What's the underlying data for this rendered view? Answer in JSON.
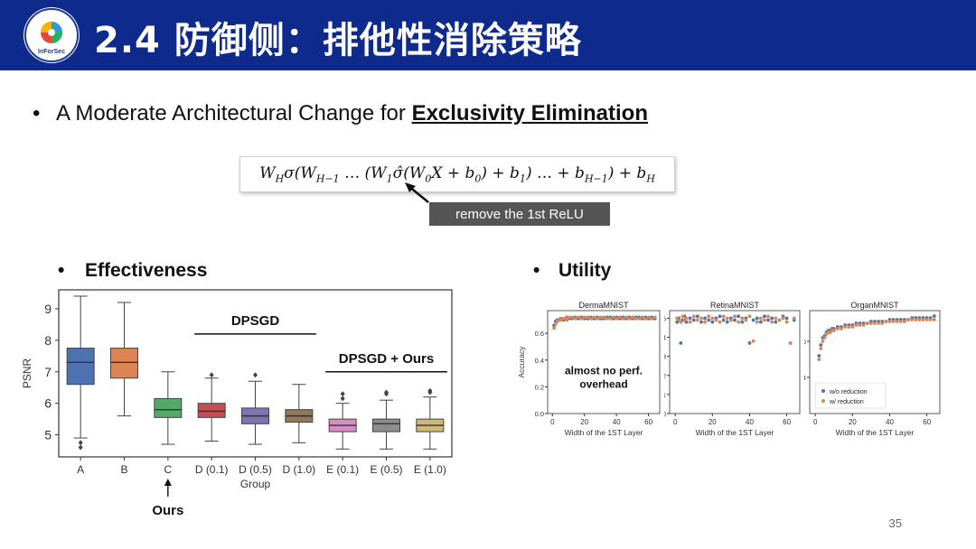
{
  "slide": {
    "title": "2.4 防御侧：排他性消除策略",
    "logo_text": "InForSec",
    "bullet_prefix": "A Moderate Architectural Change for ",
    "bullet_emphasis": "Exclusivity Elimination",
    "formula": "W_H σ(W_{H−1} … (W_1 σ̂(W_0 X + b_0) + b_1) … + b_{H−1}) + b_H",
    "formula_note": "remove the 1st ReLU",
    "effectiveness_heading": "Effectiveness",
    "utility_heading": "Utility",
    "page_number": "35",
    "colors": {
      "header_bg": "#0e2a8c",
      "note_bg": "#555555"
    }
  },
  "chart_data": [
    {
      "type": "box",
      "ylabel": "PSNR",
      "xlabel": "Group",
      "ylim": [
        4.3,
        9.6
      ],
      "yticks": [
        5,
        6,
        7,
        8,
        9
      ],
      "categories": [
        "A",
        "B",
        "C",
        "D (0.1)",
        "D (0.5)",
        "D (1.0)",
        "E (0.1)",
        "E (0.5)",
        "E (1.0)"
      ],
      "colors": [
        "#4c72b0",
        "#dd8452",
        "#55a868",
        "#c44e52",
        "#8172b3",
        "#937860",
        "#da8bc3",
        "#8c8c8c",
        "#ccb974"
      ],
      "boxes": [
        {
          "whislo": 4.9,
          "q1": 6.6,
          "med": 7.3,
          "q3": 7.75,
          "whishi": 9.4,
          "fliers": [
            4.75,
            4.6
          ]
        },
        {
          "whislo": 5.6,
          "q1": 6.8,
          "med": 7.3,
          "q3": 7.75,
          "whishi": 9.2,
          "fliers": []
        },
        {
          "whislo": 4.7,
          "q1": 5.55,
          "med": 5.8,
          "q3": 6.15,
          "whishi": 7.0,
          "fliers": []
        },
        {
          "whislo": 4.8,
          "q1": 5.55,
          "med": 5.75,
          "q3": 6.0,
          "whishi": 6.8,
          "fliers": [
            6.9
          ]
        },
        {
          "whislo": 4.7,
          "q1": 5.35,
          "med": 5.6,
          "q3": 5.85,
          "whishi": 6.7,
          "fliers": [
            6.9
          ]
        },
        {
          "whislo": 4.75,
          "q1": 5.4,
          "med": 5.6,
          "q3": 5.8,
          "whishi": 6.6,
          "fliers": []
        },
        {
          "whislo": 4.55,
          "q1": 5.1,
          "med": 5.3,
          "q3": 5.5,
          "whishi": 6.0,
          "fliers": [
            6.15,
            6.3
          ]
        },
        {
          "whislo": 4.55,
          "q1": 5.1,
          "med": 5.35,
          "q3": 5.5,
          "whishi": 6.1,
          "fliers": [
            6.3,
            6.35
          ]
        },
        {
          "whislo": 4.55,
          "q1": 5.1,
          "med": 5.3,
          "q3": 5.5,
          "whishi": 6.2,
          "fliers": [
            6.35,
            6.4
          ]
        }
      ],
      "annotations": [
        {
          "text": "DPSGD",
          "span": [
            3,
            5
          ],
          "y": 8.2
        },
        {
          "text": "DPSGD + Ours",
          "span": [
            6,
            8
          ],
          "y": 7.0
        },
        {
          "text": "Ours",
          "category": 2
        }
      ]
    },
    {
      "type": "scatter",
      "title": "DermaMNIST",
      "ylabel": "Accuracy",
      "xlabel": "Width of the 1ST Layer",
      "xlim": [
        -3,
        67
      ],
      "ylim": [
        0.0,
        0.77
      ],
      "xticks": [
        0,
        20,
        40,
        60
      ],
      "yticks": [
        0.0,
        0.2,
        0.4,
        0.6
      ],
      "annotation": "almost no perf. overhead",
      "series": [
        {
          "name": "w/o reduction",
          "color": "#4c72b0",
          "x": [
            1,
            2,
            3,
            4,
            5,
            6,
            7,
            8,
            9,
            10,
            12,
            14,
            16,
            18,
            20,
            22,
            24,
            26,
            28,
            30,
            32,
            34,
            36,
            38,
            40,
            42,
            44,
            46,
            48,
            50,
            52,
            54,
            56,
            58,
            60,
            62,
            64
          ],
          "y": [
            0.66,
            0.69,
            0.7,
            0.7,
            0.71,
            0.71,
            0.7,
            0.71,
            0.72,
            0.71,
            0.71,
            0.72,
            0.71,
            0.72,
            0.71,
            0.71,
            0.72,
            0.71,
            0.72,
            0.71,
            0.71,
            0.72,
            0.72,
            0.71,
            0.72,
            0.71,
            0.72,
            0.71,
            0.72,
            0.71,
            0.72,
            0.72,
            0.71,
            0.72,
            0.71,
            0.72,
            0.71
          ]
        },
        {
          "name": "w/ reduction",
          "color": "#dd8452",
          "x": [
            1,
            2,
            3,
            4,
            5,
            6,
            7,
            8,
            9,
            10,
            12,
            14,
            16,
            18,
            20,
            22,
            24,
            26,
            28,
            30,
            32,
            34,
            36,
            38,
            40,
            42,
            44,
            46,
            48,
            50,
            52,
            54,
            56,
            58,
            60,
            62,
            64
          ],
          "y": [
            0.64,
            0.67,
            0.69,
            0.7,
            0.7,
            0.71,
            0.71,
            0.71,
            0.7,
            0.72,
            0.72,
            0.71,
            0.72,
            0.71,
            0.72,
            0.72,
            0.71,
            0.72,
            0.71,
            0.72,
            0.72,
            0.71,
            0.71,
            0.72,
            0.71,
            0.72,
            0.71,
            0.72,
            0.71,
            0.72,
            0.71,
            0.71,
            0.72,
            0.71,
            0.72,
            0.71,
            0.72
          ]
        }
      ]
    },
    {
      "type": "scatter",
      "title": "RetinaMNIST",
      "xlabel": "Width of the 1ST Layer",
      "xlim": [
        -3,
        67
      ],
      "ylim": [
        0.0,
        0.54
      ],
      "xticks": [
        0,
        20,
        40,
        60
      ],
      "yticks": [
        0.0,
        0.1,
        0.2,
        0.3,
        0.4,
        0.5
      ],
      "series": [
        {
          "name": "w/o reduction",
          "color": "#4c72b0",
          "x": [
            1,
            2,
            3,
            4,
            5,
            6,
            8,
            10,
            12,
            14,
            16,
            18,
            20,
            22,
            24,
            26,
            28,
            30,
            32,
            34,
            36,
            38,
            40,
            42,
            44,
            46,
            48,
            50,
            52,
            54,
            56,
            58,
            60,
            62,
            64
          ],
          "y": [
            0.48,
            0.5,
            0.37,
            0.49,
            0.51,
            0.48,
            0.5,
            0.49,
            0.51,
            0.48,
            0.5,
            0.49,
            0.48,
            0.5,
            0.51,
            0.49,
            0.48,
            0.5,
            0.49,
            0.51,
            0.48,
            0.5,
            0.37,
            0.49,
            0.5,
            0.48,
            0.51,
            0.49,
            0.5,
            0.48,
            0.49,
            0.51,
            0.5,
            0.37,
            0.49
          ]
        },
        {
          "name": "w/ reduction",
          "color": "#dd8452",
          "x": [
            1,
            2,
            3,
            4,
            5,
            6,
            8,
            10,
            12,
            14,
            16,
            18,
            20,
            22,
            24,
            26,
            28,
            30,
            32,
            34,
            36,
            38,
            40,
            42,
            44,
            46,
            48,
            50,
            52,
            54,
            56,
            58,
            60,
            62,
            64
          ],
          "y": [
            0.5,
            0.49,
            0.48,
            0.51,
            0.49,
            0.5,
            0.48,
            0.51,
            0.49,
            0.5,
            0.48,
            0.51,
            0.5,
            0.49,
            0.48,
            0.51,
            0.5,
            0.49,
            0.51,
            0.48,
            0.5,
            0.49,
            0.51,
            0.38,
            0.48,
            0.5,
            0.49,
            0.51,
            0.48,
            0.5,
            0.49,
            0.5,
            0.48,
            0.37,
            0.5
          ]
        }
      ]
    },
    {
      "type": "scatter",
      "title": "OrganMNIST",
      "xlabel": "Width of the 1ST Layer",
      "xlim": [
        -3,
        67
      ],
      "ylim": [
        0.2,
        0.77
      ],
      "xticks": [
        0,
        20,
        40,
        60
      ],
      "yticks": [
        0.4,
        0.6
      ],
      "legend": "lower-right",
      "series": [
        {
          "name": "w/o reduction",
          "color": "#4c72b0",
          "x": [
            1,
            2,
            3,
            4,
            5,
            6,
            7,
            8,
            9,
            10,
            12,
            14,
            16,
            18,
            20,
            22,
            24,
            26,
            28,
            30,
            32,
            34,
            36,
            38,
            40,
            42,
            44,
            46,
            48,
            50,
            52,
            54,
            56,
            58,
            60,
            62,
            64
          ],
          "y": [
            0.36,
            0.52,
            0.58,
            0.62,
            0.63,
            0.65,
            0.66,
            0.66,
            0.67,
            0.67,
            0.68,
            0.68,
            0.69,
            0.69,
            0.69,
            0.7,
            0.7,
            0.7,
            0.7,
            0.71,
            0.71,
            0.71,
            0.71,
            0.71,
            0.72,
            0.72,
            0.72,
            0.72,
            0.72,
            0.72,
            0.73,
            0.73,
            0.73,
            0.73,
            0.73,
            0.73,
            0.74
          ]
        },
        {
          "name": "w/ reduction",
          "color": "#dd8452",
          "x": [
            1,
            2,
            3,
            4,
            5,
            6,
            7,
            8,
            9,
            10,
            12,
            14,
            16,
            18,
            20,
            22,
            24,
            26,
            28,
            30,
            32,
            34,
            36,
            38,
            40,
            42,
            44,
            46,
            48,
            50,
            52,
            54,
            56,
            58,
            60,
            62,
            64
          ],
          "y": [
            0.33,
            0.5,
            0.56,
            0.6,
            0.62,
            0.64,
            0.65,
            0.65,
            0.66,
            0.66,
            0.67,
            0.67,
            0.68,
            0.68,
            0.68,
            0.69,
            0.69,
            0.69,
            0.7,
            0.7,
            0.7,
            0.7,
            0.7,
            0.71,
            0.71,
            0.71,
            0.71,
            0.71,
            0.71,
            0.72,
            0.72,
            0.72,
            0.72,
            0.72,
            0.72,
            0.72,
            0.72
          ]
        }
      ]
    }
  ]
}
